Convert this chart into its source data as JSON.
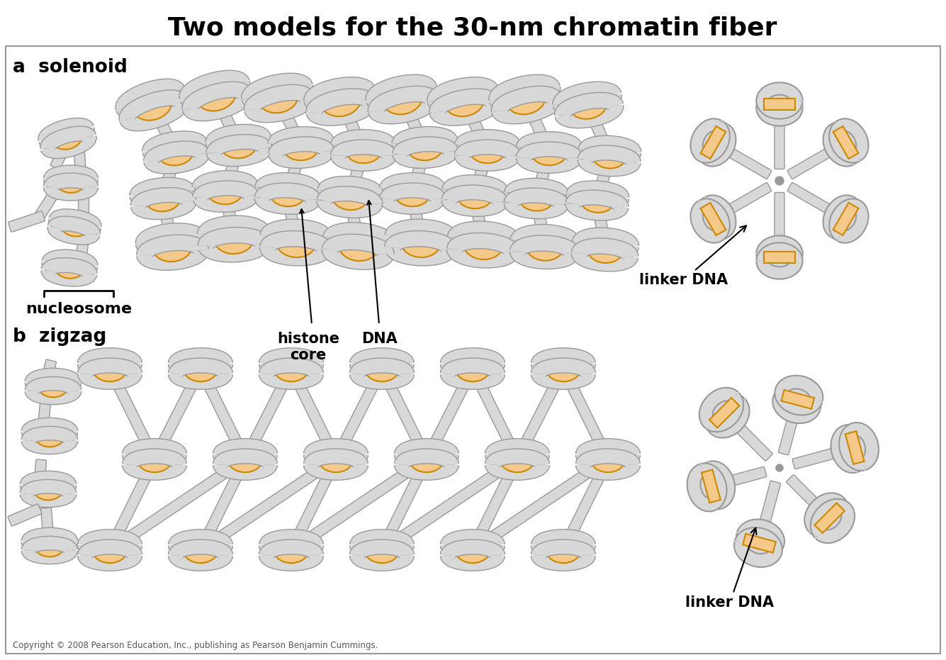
{
  "title": "Two models for the 30-nm chromatin fiber",
  "title_fontsize": 26,
  "bg_color": "#ffffff",
  "border_color": "#999999",
  "nuc_fill": "#f5c98a",
  "nuc_edge": "#cc8800",
  "dna_fill": "#d8d8d8",
  "dna_edge": "#999999",
  "label_a": "a  solenoid",
  "label_b": "b  zigzag",
  "label_nucleosome": "nucleosome",
  "label_histone": "histone\ncore",
  "label_dna": "DNA",
  "label_linker_a": "linker DNA",
  "label_linker_b": "linker DNA",
  "copyright": "Copyright © 2008 Pearson Education, Inc., publishing as Pearson Benjamin Cummings.",
  "fig_width": 13.35,
  "fig_height": 9.31,
  "dpi": 100
}
